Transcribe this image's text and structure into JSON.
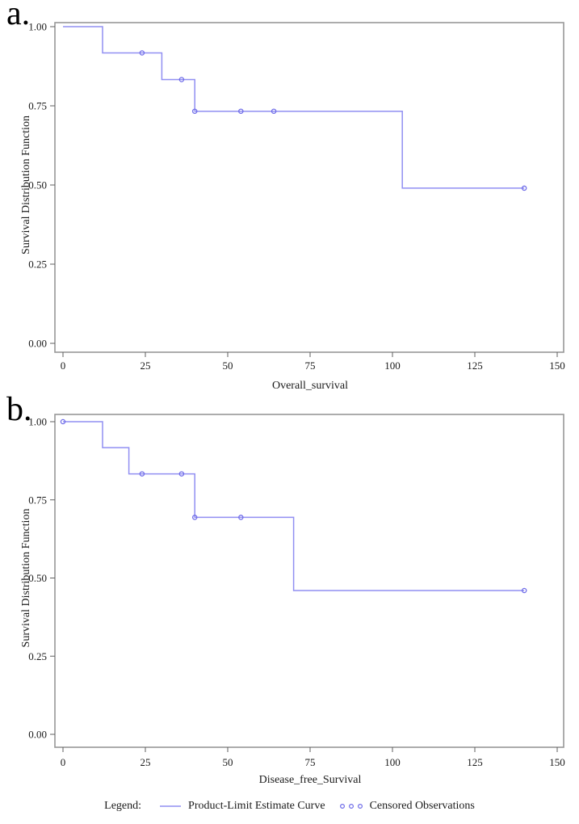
{
  "page": {
    "background": "#ffffff"
  },
  "panels": [
    {
      "label": "a."
    },
    {
      "label": "b."
    }
  ],
  "chart_data": [
    {
      "type": "line",
      "subtype": "kaplan-meier-step",
      "title": "",
      "xlabel": "Overall_survival",
      "ylabel": "Survival Distribution Function",
      "xlim": [
        0,
        150
      ],
      "ylim": [
        0.0,
        1.0
      ],
      "xticks": [
        "0",
        "25",
        "50",
        "75",
        "100",
        "125",
        "150"
      ],
      "xtick_values": [
        0,
        25,
        50,
        75,
        100,
        125,
        150
      ],
      "yticks": [
        "1.00",
        "0.75",
        "0.50",
        "0.25",
        "0.00"
      ],
      "ytick_values": [
        1.0,
        0.75,
        0.5,
        0.25,
        0.0
      ],
      "grid": false,
      "series": [
        {
          "name": "Product-Limit Estimate Curve",
          "step_points": [
            [
              0,
              1.0
            ],
            [
              12,
              1.0
            ],
            [
              12,
              0.917
            ],
            [
              30,
              0.917
            ],
            [
              30,
              0.833
            ],
            [
              40,
              0.833
            ],
            [
              40,
              0.733
            ],
            [
              103,
              0.733
            ],
            [
              103,
              0.49
            ],
            [
              140,
              0.49
            ]
          ]
        }
      ],
      "censored_observations": [
        [
          24,
          0.917
        ],
        [
          36,
          0.833
        ],
        [
          40,
          0.733
        ],
        [
          54,
          0.733
        ],
        [
          64,
          0.733
        ],
        [
          140,
          0.49
        ]
      ]
    },
    {
      "type": "line",
      "subtype": "kaplan-meier-step",
      "title": "",
      "xlabel": "Disease_free_Survival",
      "ylabel": "Survival Distribution Function",
      "xlim": [
        0,
        150
      ],
      "ylim": [
        0.0,
        1.0
      ],
      "xticks": [
        "0",
        "25",
        "50",
        "75",
        "100",
        "125",
        "150"
      ],
      "xtick_values": [
        0,
        25,
        50,
        75,
        100,
        125,
        150
      ],
      "yticks": [
        "1.00",
        "0.75",
        "0.50",
        "0.25",
        "0.00"
      ],
      "ytick_values": [
        1.0,
        0.75,
        0.5,
        0.25,
        0.0
      ],
      "grid": false,
      "series": [
        {
          "name": "Product-Limit Estimate Curve",
          "step_points": [
            [
              0,
              1.0
            ],
            [
              12,
              1.0
            ],
            [
              12,
              0.917
            ],
            [
              20,
              0.917
            ],
            [
              20,
              0.833
            ],
            [
              40,
              0.833
            ],
            [
              40,
              0.694
            ],
            [
              70,
              0.694
            ],
            [
              70,
              0.46
            ],
            [
              140,
              0.46
            ]
          ]
        }
      ],
      "censored_observations": [
        [
          0,
          1.0
        ],
        [
          24,
          0.833
        ],
        [
          36,
          0.833
        ],
        [
          40,
          0.694
        ],
        [
          54,
          0.694
        ],
        [
          140,
          0.46
        ]
      ]
    }
  ],
  "legend": {
    "label": "Legend:",
    "line_label": "Product-Limit Estimate Curve",
    "marker_label": "Censored Observations"
  },
  "colors": {
    "curve_line": "#918ff2",
    "censor_marker": "#6f6ce8",
    "frame": "#979797",
    "tick": "#5f5f5f",
    "text": "#1a1a1a"
  }
}
